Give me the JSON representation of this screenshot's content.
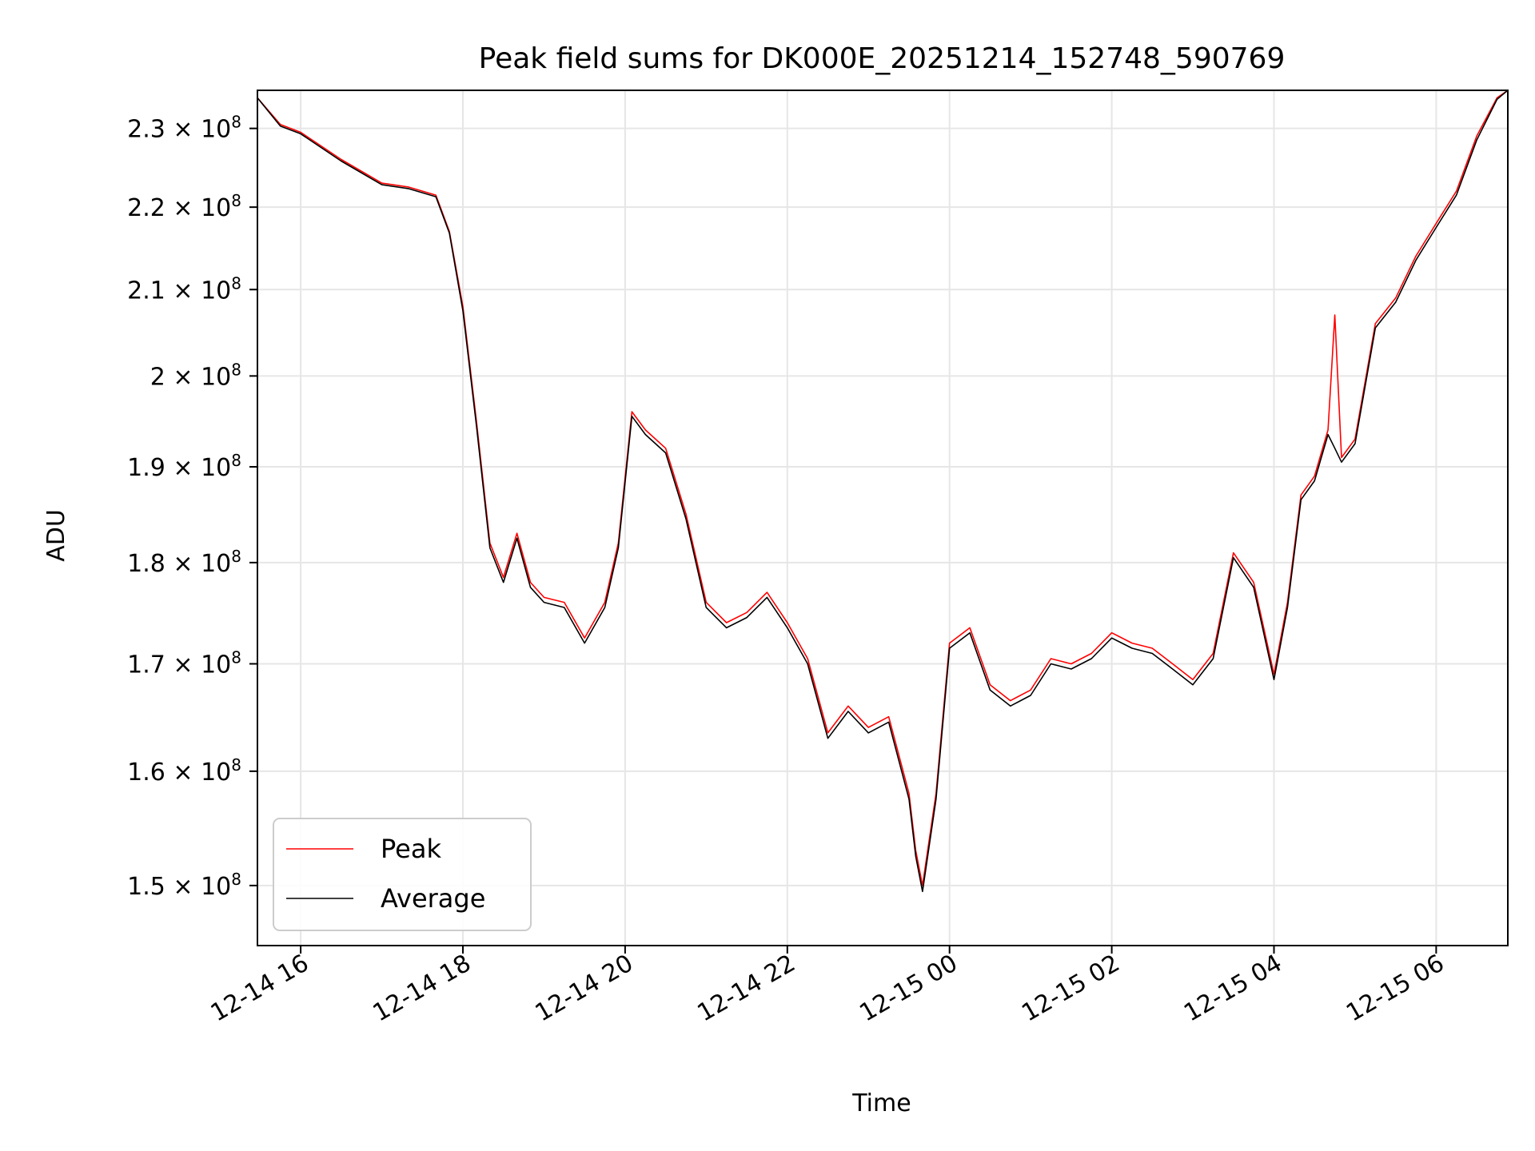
{
  "chart_data": {
    "type": "line",
    "title": "Peak field sums for DK000E_20251214_152748_590769",
    "xlabel": "Time",
    "ylabel": "ADU",
    "yscale": "log",
    "ylim": [
      145000000,
      235000000
    ],
    "xlim": [
      "2025-12-14 15:28",
      "2025-12-15 06:53"
    ],
    "grid": true,
    "legend_position": "lower-left",
    "x_ticks": [
      {
        "value": "2025-12-14 16:00",
        "label": "12-14 16"
      },
      {
        "value": "2025-12-14 18:00",
        "label": "12-14 18"
      },
      {
        "value": "2025-12-14 20:00",
        "label": "12-14 20"
      },
      {
        "value": "2025-12-14 22:00",
        "label": "12-14 22"
      },
      {
        "value": "2025-12-15 00:00",
        "label": "12-15 00"
      },
      {
        "value": "2025-12-15 02:00",
        "label": "12-15 02"
      },
      {
        "value": "2025-12-15 04:00",
        "label": "12-15 04"
      },
      {
        "value": "2025-12-15 06:00",
        "label": "12-15 06"
      }
    ],
    "y_ticks": [
      {
        "value": 150000000,
        "mantissa": "1.5",
        "exp": "8"
      },
      {
        "value": 160000000,
        "mantissa": "1.6",
        "exp": "8"
      },
      {
        "value": 170000000,
        "mantissa": "1.7",
        "exp": "8"
      },
      {
        "value": 180000000,
        "mantissa": "1.8",
        "exp": "8"
      },
      {
        "value": 190000000,
        "mantissa": "1.9",
        "exp": "8"
      },
      {
        "value": 200000000,
        "mantissa": "2",
        "exp": "8"
      },
      {
        "value": 210000000,
        "mantissa": "2.1",
        "exp": "8"
      },
      {
        "value": 220000000,
        "mantissa": "2.2",
        "exp": "8"
      },
      {
        "value": 230000000,
        "mantissa": "2.3",
        "exp": "8"
      }
    ],
    "series": [
      {
        "name": "Peak",
        "color": "#ff0000",
        "x": [
          "2025-12-14 15:28",
          "2025-12-14 15:45",
          "2025-12-14 16:00",
          "2025-12-14 16:30",
          "2025-12-14 17:00",
          "2025-12-14 17:20",
          "2025-12-14 17:40",
          "2025-12-14 17:50",
          "2025-12-14 18:00",
          "2025-12-14 18:10",
          "2025-12-14 18:20",
          "2025-12-14 18:30",
          "2025-12-14 18:40",
          "2025-12-14 18:50",
          "2025-12-14 19:00",
          "2025-12-14 19:15",
          "2025-12-14 19:30",
          "2025-12-14 19:45",
          "2025-12-14 19:55",
          "2025-12-14 20:05",
          "2025-12-14 20:15",
          "2025-12-14 20:30",
          "2025-12-14 20:45",
          "2025-12-14 21:00",
          "2025-12-14 21:15",
          "2025-12-14 21:30",
          "2025-12-14 21:45",
          "2025-12-14 22:00",
          "2025-12-14 22:15",
          "2025-12-14 22:30",
          "2025-12-14 22:45",
          "2025-12-14 23:00",
          "2025-12-14 23:15",
          "2025-12-14 23:30",
          "2025-12-14 23:35",
          "2025-12-14 23:40",
          "2025-12-14 23:50",
          "2025-12-15 00:00",
          "2025-12-15 00:15",
          "2025-12-15 00:30",
          "2025-12-15 00:45",
          "2025-12-15 01:00",
          "2025-12-15 01:15",
          "2025-12-15 01:30",
          "2025-12-15 01:45",
          "2025-12-15 02:00",
          "2025-12-15 02:15",
          "2025-12-15 02:30",
          "2025-12-15 02:45",
          "2025-12-15 03:00",
          "2025-12-15 03:15",
          "2025-12-15 03:30",
          "2025-12-15 03:45",
          "2025-12-15 04:00",
          "2025-12-15 04:10",
          "2025-12-15 04:20",
          "2025-12-15 04:30",
          "2025-12-15 04:40",
          "2025-12-15 04:45",
          "2025-12-15 04:50",
          "2025-12-15 05:00",
          "2025-12-15 05:15",
          "2025-12-15 05:30",
          "2025-12-15 05:45",
          "2025-12-15 06:00",
          "2025-12-15 06:15",
          "2025-12-15 06:30",
          "2025-12-15 06:45",
          "2025-12-15 06:53"
        ],
        "values": [
          234000000,
          230500000,
          229500000,
          226000000,
          223000000,
          222500000,
          221500000,
          217000000,
          208000000,
          195000000,
          182000000,
          178500000,
          183000000,
          178000000,
          176500000,
          176000000,
          172500000,
          176000000,
          182000000,
          196000000,
          194000000,
          192000000,
          185000000,
          176000000,
          174000000,
          175000000,
          177000000,
          174000000,
          170500000,
          163500000,
          166000000,
          164000000,
          165000000,
          158000000,
          153000000,
          150000000,
          158000000,
          172000000,
          173500000,
          168000000,
          166500000,
          167500000,
          170500000,
          170000000,
          171000000,
          173000000,
          172000000,
          171500000,
          170000000,
          168500000,
          171000000,
          181000000,
          178000000,
          169000000,
          176000000,
          187000000,
          189000000,
          194000000,
          207000000,
          191000000,
          193000000,
          206000000,
          209000000,
          214000000,
          218000000,
          222000000,
          229000000,
          234000000,
          235000000
        ]
      },
      {
        "name": "Average",
        "color": "#000000",
        "x": [
          "2025-12-14 15:28",
          "2025-12-14 15:45",
          "2025-12-14 16:00",
          "2025-12-14 16:30",
          "2025-12-14 17:00",
          "2025-12-14 17:20",
          "2025-12-14 17:40",
          "2025-12-14 17:50",
          "2025-12-14 18:00",
          "2025-12-14 18:10",
          "2025-12-14 18:20",
          "2025-12-14 18:30",
          "2025-12-14 18:40",
          "2025-12-14 18:50",
          "2025-12-14 19:00",
          "2025-12-14 19:15",
          "2025-12-14 19:30",
          "2025-12-14 19:45",
          "2025-12-14 19:55",
          "2025-12-14 20:05",
          "2025-12-14 20:15",
          "2025-12-14 20:30",
          "2025-12-14 20:45",
          "2025-12-14 21:00",
          "2025-12-14 21:15",
          "2025-12-14 21:30",
          "2025-12-14 21:45",
          "2025-12-14 22:00",
          "2025-12-14 22:15",
          "2025-12-14 22:30",
          "2025-12-14 22:45",
          "2025-12-14 23:00",
          "2025-12-14 23:15",
          "2025-12-14 23:30",
          "2025-12-14 23:35",
          "2025-12-14 23:40",
          "2025-12-14 23:50",
          "2025-12-15 00:00",
          "2025-12-15 00:15",
          "2025-12-15 00:30",
          "2025-12-15 00:45",
          "2025-12-15 01:00",
          "2025-12-15 01:15",
          "2025-12-15 01:30",
          "2025-12-15 01:45",
          "2025-12-15 02:00",
          "2025-12-15 02:15",
          "2025-12-15 02:30",
          "2025-12-15 02:45",
          "2025-12-15 03:00",
          "2025-12-15 03:15",
          "2025-12-15 03:30",
          "2025-12-15 03:45",
          "2025-12-15 04:00",
          "2025-12-15 04:10",
          "2025-12-15 04:20",
          "2025-12-15 04:30",
          "2025-12-15 04:40",
          "2025-12-15 04:45",
          "2025-12-15 04:50",
          "2025-12-15 05:00",
          "2025-12-15 05:15",
          "2025-12-15 05:30",
          "2025-12-15 05:45",
          "2025-12-15 06:00",
          "2025-12-15 06:15",
          "2025-12-15 06:30",
          "2025-12-15 06:45",
          "2025-12-15 06:53"
        ],
        "values": [
          234000000,
          230300000,
          229300000,
          225800000,
          222800000,
          222300000,
          221300000,
          216800000,
          207500000,
          194500000,
          181500000,
          178000000,
          182500000,
          177500000,
          176000000,
          175500000,
          172000000,
          175500000,
          181500000,
          195500000,
          193500000,
          191500000,
          184500000,
          175500000,
          173500000,
          174500000,
          176500000,
          173500000,
          170000000,
          163000000,
          165500000,
          163500000,
          164500000,
          157500000,
          152500000,
          149500000,
          157500000,
          171500000,
          173000000,
          167500000,
          166000000,
          167000000,
          170000000,
          169500000,
          170500000,
          172500000,
          171500000,
          171000000,
          169500000,
          168000000,
          170500000,
          180500000,
          177500000,
          168500000,
          175500000,
          186500000,
          188500000,
          193500000,
          192000000,
          190500000,
          192500000,
          205500000,
          208500000,
          213500000,
          217500000,
          221500000,
          228500000,
          233800000,
          235000000
        ]
      }
    ]
  }
}
